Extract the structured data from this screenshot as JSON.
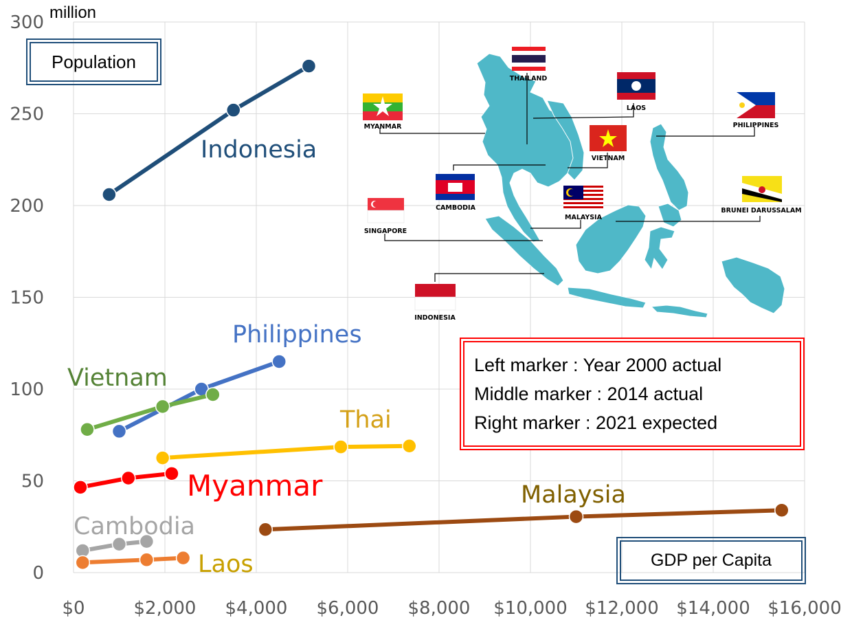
{
  "chart_data": {
    "type": "scatter",
    "mode": "connected",
    "x_unit_note": "GDP per Capita",
    "y_unit": "million",
    "xlim": [
      0,
      16000
    ],
    "ylim": [
      0,
      300
    ],
    "x_ticks": [
      0,
      2000,
      4000,
      6000,
      8000,
      10000,
      12000,
      14000,
      16000
    ],
    "x_tick_labels": [
      "$0",
      "$2,000",
      "$4,000",
      "$6,000",
      "$8,000",
      "$10,000",
      "$12,000",
      "$14,000",
      "$16,000"
    ],
    "y_ticks": [
      0,
      50,
      100,
      150,
      200,
      250,
      300
    ],
    "y_tick_labels": [
      "0",
      "50",
      "100",
      "150",
      "200",
      "250",
      "300"
    ],
    "grid": true,
    "series": [
      {
        "name": "Indonesia",
        "color": "#1f4e79",
        "points": [
          [
            780,
            206
          ],
          [
            3500,
            252
          ],
          [
            5150,
            276
          ]
        ]
      },
      {
        "name": "Philippines",
        "color": "#4472c4",
        "points": [
          [
            1000,
            77
          ],
          [
            2800,
            100
          ],
          [
            4500,
            115
          ]
        ]
      },
      {
        "name": "Vietnam",
        "color": "#70ad47",
        "points": [
          [
            300,
            78
          ],
          [
            1950,
            90.5
          ],
          [
            3050,
            97
          ]
        ]
      },
      {
        "name": "Thai",
        "color": "#ffc000",
        "points": [
          [
            1950,
            62.5
          ],
          [
            5850,
            68.5
          ],
          [
            7350,
            69
          ]
        ]
      },
      {
        "name": "Myanmar",
        "color": "#ff0000",
        "points": [
          [
            150,
            46.5
          ],
          [
            1200,
            51.5
          ],
          [
            2150,
            54
          ]
        ]
      },
      {
        "name": "Malaysia",
        "color": "#9c4a12",
        "points": [
          [
            4200,
            23.5
          ],
          [
            11000,
            30.5
          ],
          [
            15500,
            34
          ]
        ]
      },
      {
        "name": "Cambodia",
        "color": "#a5a5a5",
        "points": [
          [
            200,
            12
          ],
          [
            1000,
            15.5
          ],
          [
            1600,
            17
          ]
        ]
      },
      {
        "name": "Laos",
        "color": "#ed7d31",
        "points": [
          [
            200,
            5.5
          ],
          [
            1600,
            7
          ],
          [
            2400,
            8
          ]
        ]
      }
    ]
  },
  "labels": {
    "unit": "million",
    "population_box": "Population",
    "gdp_box": "GDP per Capita",
    "series_label_colors": {
      "Indonesia": "#1f4e79",
      "Philippines": "#4472c4",
      "Vietnam": "#548235",
      "Thai": "#d4a017",
      "Myanmar": "#ff0000",
      "Malaysia": "#806000",
      "Cambodia": "#a5a5a5",
      "Laos": "#c8a000"
    }
  },
  "legend_note": {
    "line1": "Left marker : Year 2000 actual",
    "line2": "Middle marker : 2014 actual",
    "line3": "Right marker : 2021 expected"
  },
  "map": {
    "countries": [
      "THAILAND",
      "LAOS",
      "MYANMAR",
      "PHILIPPINES",
      "VIETNAM",
      "CAMBODIA",
      "MALAYSIA",
      "BRUNEI  DARUSSALAM",
      "SINGAPORE",
      "INDONESIA"
    ],
    "land_color": "#4fb8c8"
  }
}
